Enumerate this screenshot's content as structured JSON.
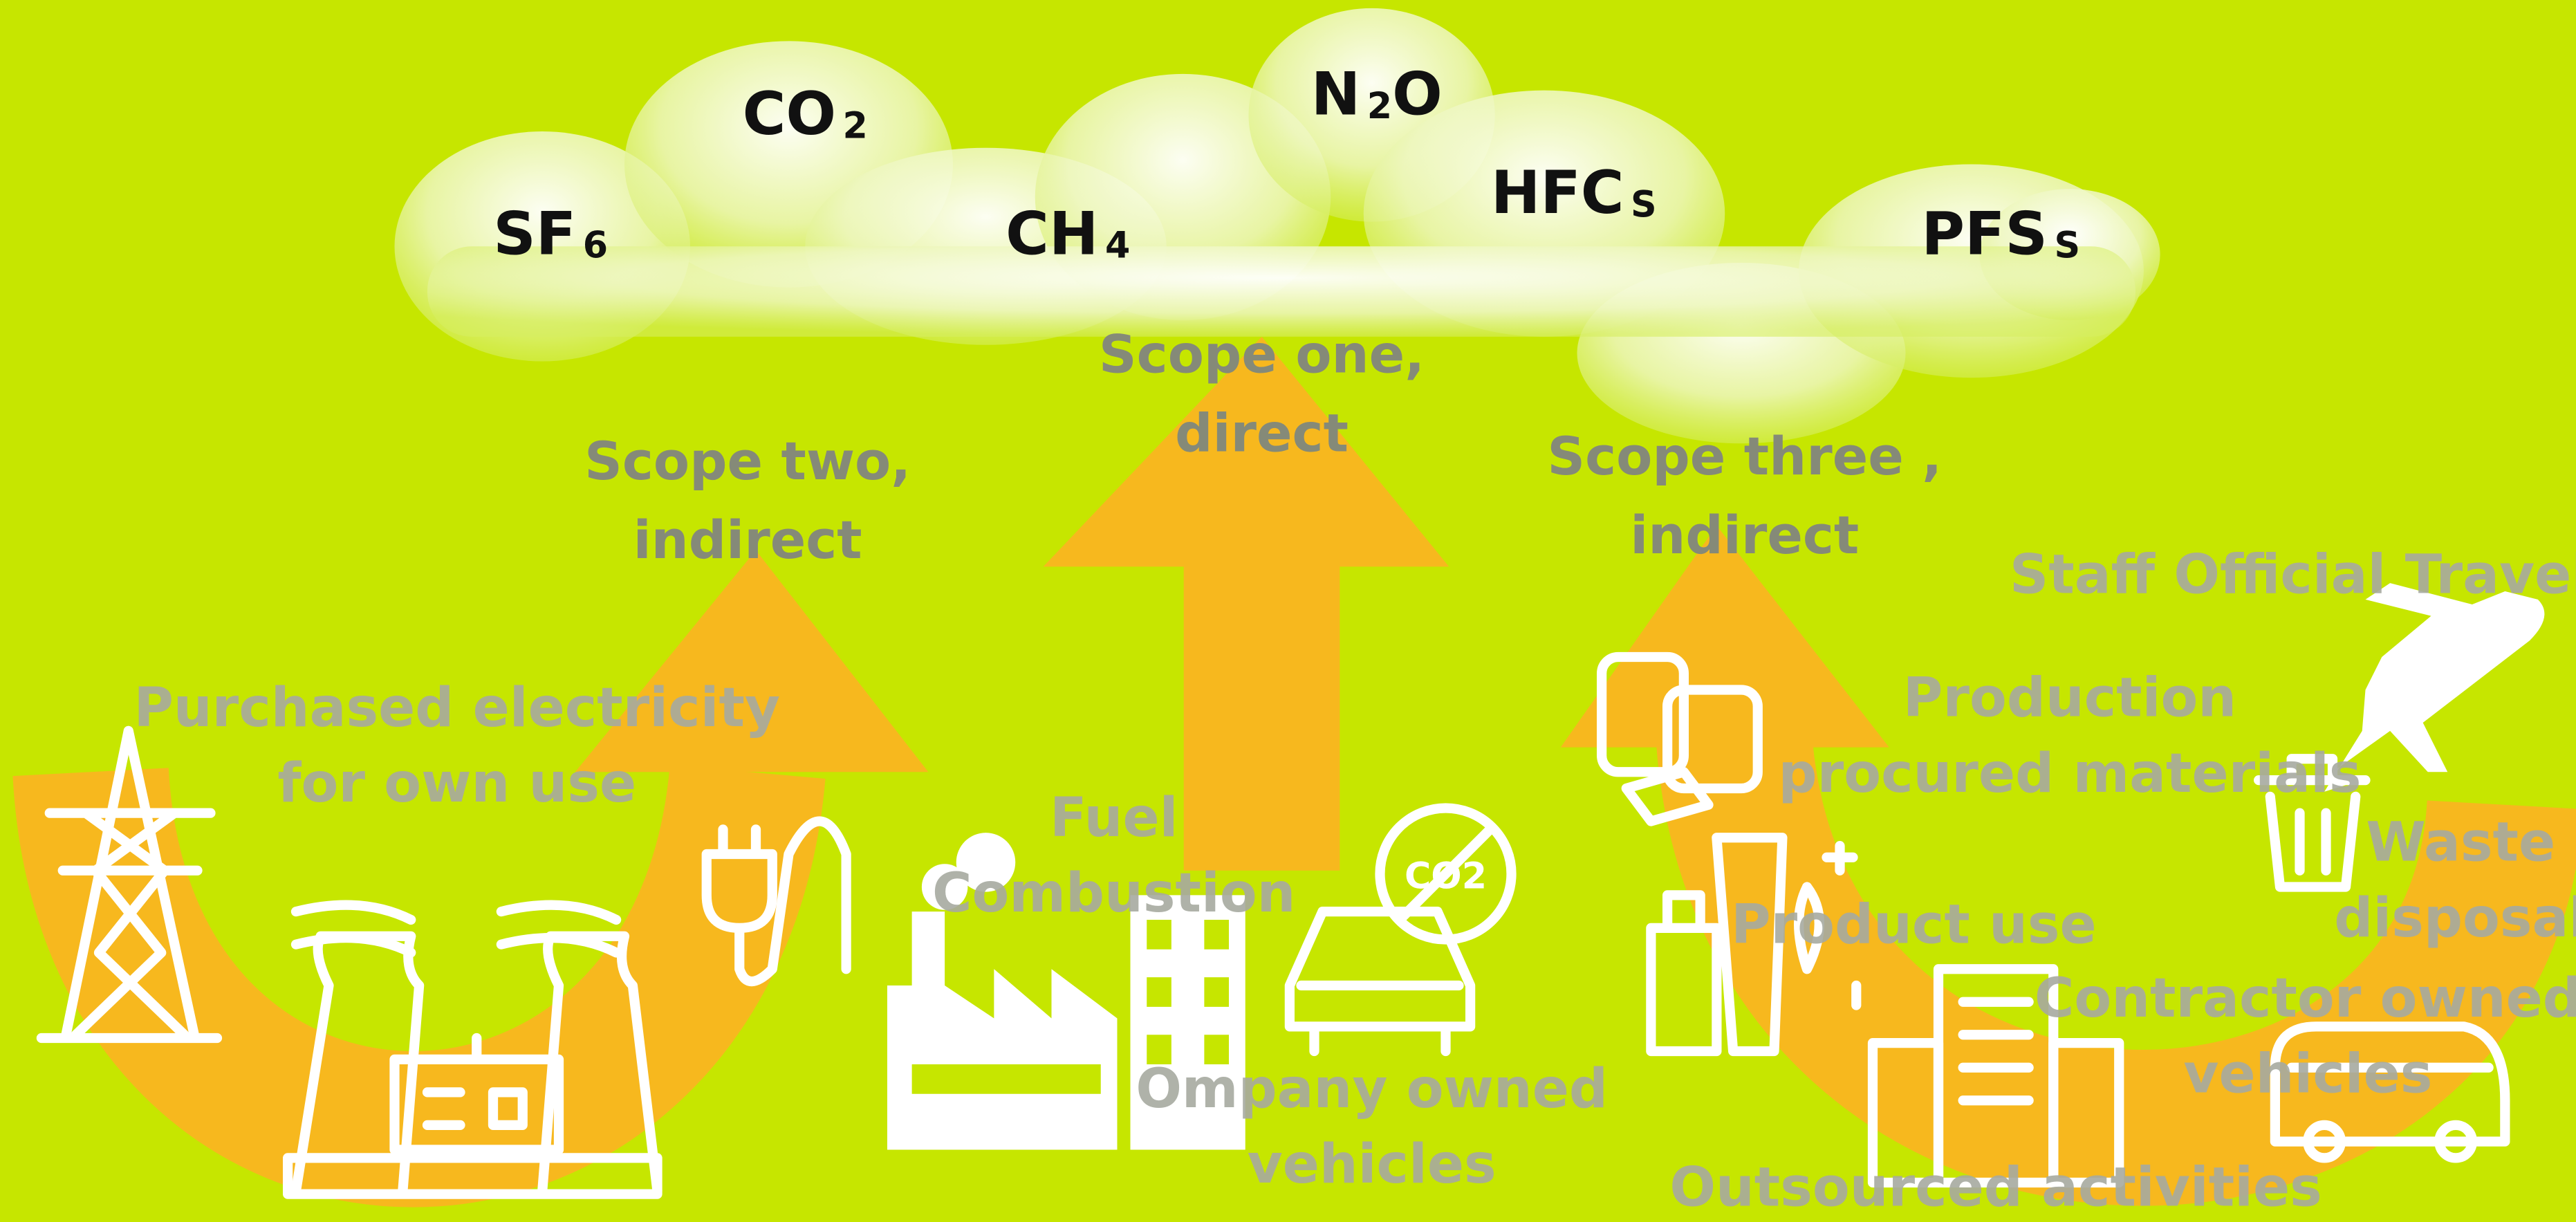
{
  "gases": [
    {
      "parts": [
        "SF",
        "6"
      ]
    },
    {
      "parts": [
        "CO",
        "2"
      ]
    },
    {
      "parts": [
        "CH",
        "4"
      ]
    },
    {
      "parts": [
        "N",
        "2",
        "O"
      ]
    },
    {
      "parts": [
        "HFC",
        "S"
      ]
    },
    {
      "parts": [
        "PFS",
        "S"
      ]
    }
  ],
  "scopes": [
    {
      "lines": [
        "Scope two,",
        "indirect"
      ]
    },
    {
      "lines": [
        "Scope one,",
        "direct"
      ]
    },
    {
      "lines": [
        "Scope three ,",
        "indirect"
      ]
    }
  ],
  "activities": [
    {
      "lines": [
        "Purchased electricity",
        "for own use"
      ]
    },
    {
      "lines": [
        "Fuel",
        "Combustion"
      ]
    },
    {
      "lines": [
        "Ompany owned",
        "vehicles"
      ]
    },
    {
      "lines": [
        "Staff Official Travel"
      ]
    },
    {
      "lines": [
        "Production",
        "procured materials"
      ]
    },
    {
      "lines": [
        "Waste",
        "disposal"
      ]
    },
    {
      "lines": [
        "Product use"
      ]
    },
    {
      "lines": [
        "Contractor owned",
        "vehicles"
      ]
    },
    {
      "lines": [
        "Outsourced activities"
      ]
    }
  ],
  "icon_text": "CO2"
}
